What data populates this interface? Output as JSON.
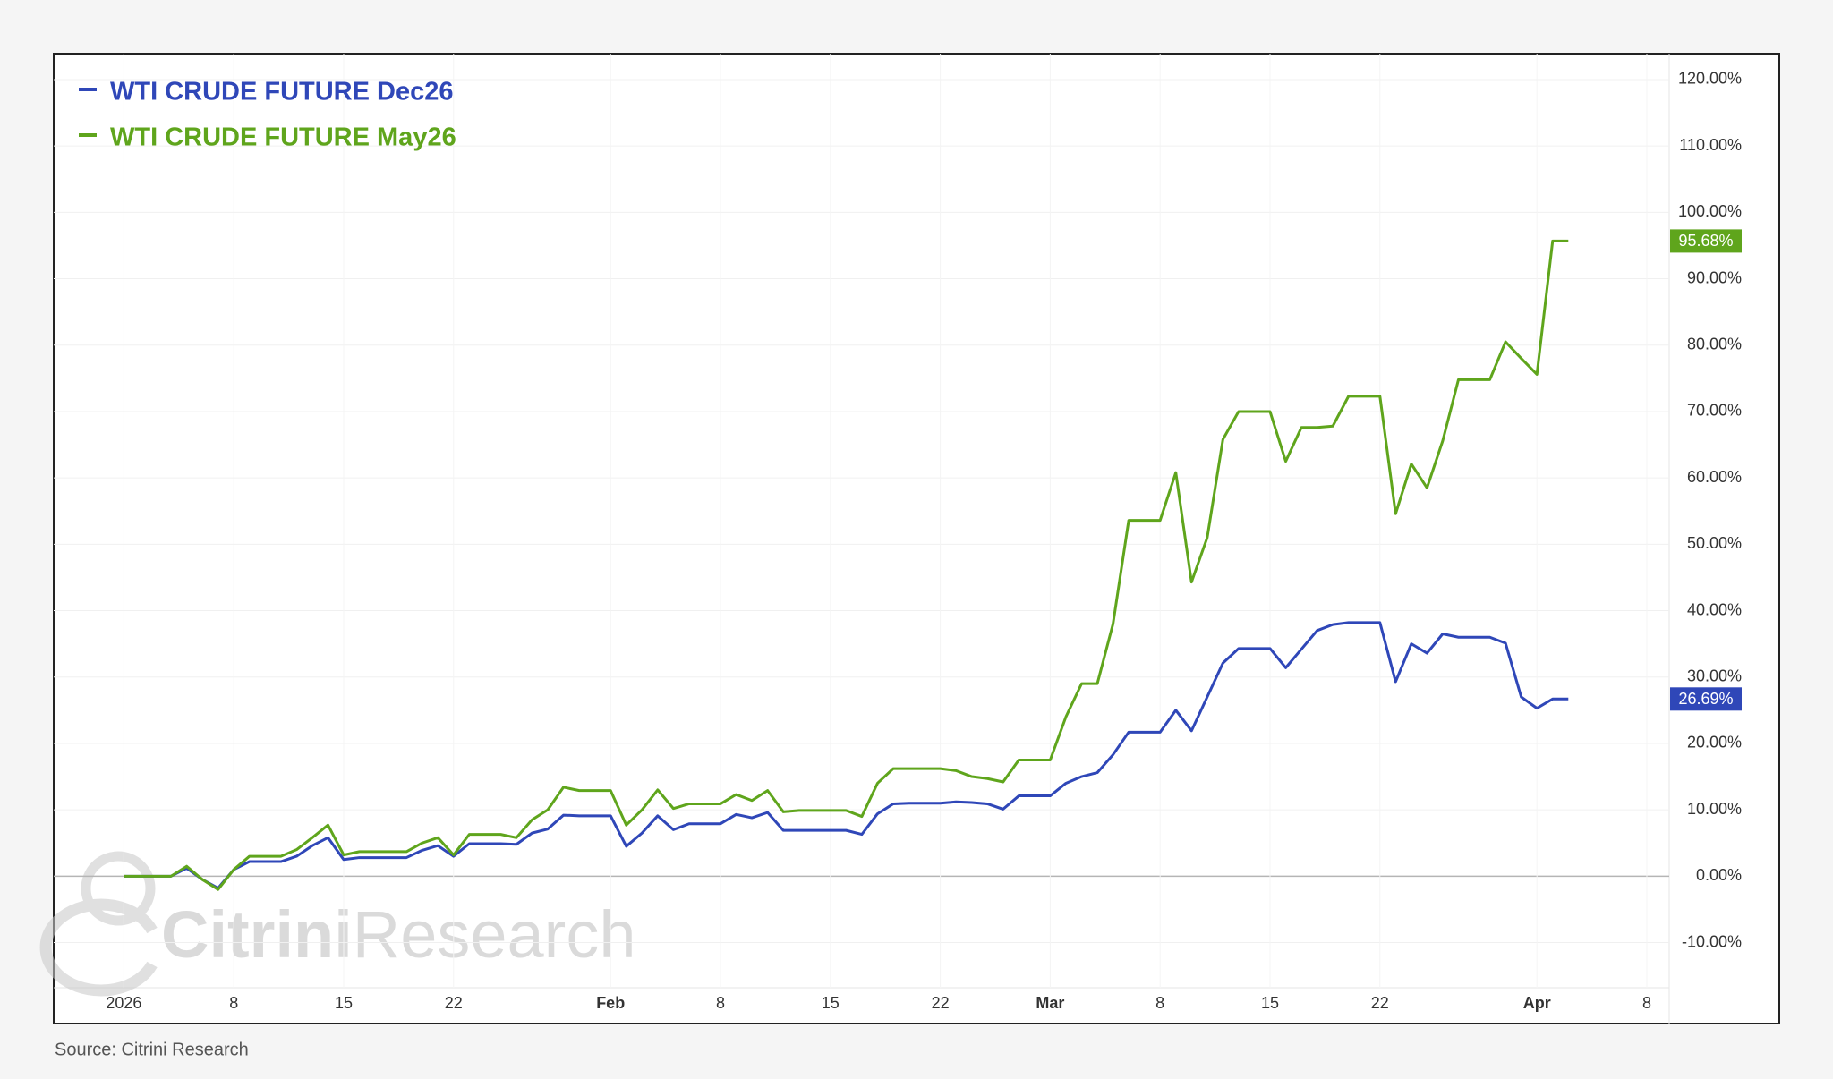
{
  "chart_data": {
    "type": "line",
    "source": "Source: Citrini Research",
    "watermark": {
      "bold": "Citrini",
      "regular": "Research"
    },
    "x": [
      "2026-01-01",
      "2026-01-02",
      "2026-01-03",
      "2026-01-04",
      "2026-01-05",
      "2026-01-06",
      "2026-01-07",
      "2026-01-08",
      "2026-01-09",
      "2026-01-10",
      "2026-01-11",
      "2026-01-12",
      "2026-01-13",
      "2026-01-14",
      "2026-01-15",
      "2026-01-16",
      "2026-01-17",
      "2026-01-18",
      "2026-01-19",
      "2026-01-20",
      "2026-01-21",
      "2026-01-22",
      "2026-01-23",
      "2026-01-24",
      "2026-01-25",
      "2026-01-26",
      "2026-01-27",
      "2026-01-28",
      "2026-01-29",
      "2026-01-30",
      "2026-01-31",
      "2026-02-01",
      "2026-02-02",
      "2026-02-03",
      "2026-02-04",
      "2026-02-05",
      "2026-02-06",
      "2026-02-07",
      "2026-02-08",
      "2026-02-09",
      "2026-02-10",
      "2026-02-11",
      "2026-02-12",
      "2026-02-13",
      "2026-02-14",
      "2026-02-15",
      "2026-02-16",
      "2026-02-17",
      "2026-02-18",
      "2026-02-19",
      "2026-02-20",
      "2026-02-21",
      "2026-02-22",
      "2026-02-23",
      "2026-02-24",
      "2026-02-25",
      "2026-02-26",
      "2026-02-27",
      "2026-02-28",
      "2026-03-01",
      "2026-03-02",
      "2026-03-03",
      "2026-03-04",
      "2026-03-05",
      "2026-03-06",
      "2026-03-07",
      "2026-03-08",
      "2026-03-09",
      "2026-03-10",
      "2026-03-11",
      "2026-03-12",
      "2026-03-13",
      "2026-03-14",
      "2026-03-15",
      "2026-03-16",
      "2026-03-17",
      "2026-03-18",
      "2026-03-19",
      "2026-03-20",
      "2026-03-21",
      "2026-03-22",
      "2026-03-23",
      "2026-03-24",
      "2026-03-25",
      "2026-03-26",
      "2026-03-27",
      "2026-03-28",
      "2026-03-29",
      "2026-03-30",
      "2026-03-31",
      "2026-04-01",
      "2026-04-02",
      "2026-04-03"
    ],
    "series": [
      {
        "name": "WTI CRUDE FUTURE Dec26",
        "color": "#2f47b8",
        "end_label": "26.69%",
        "values": [
          0,
          0,
          0,
          0,
          1.2,
          -0.5,
          -1.8,
          1,
          2.2,
          2.2,
          2.2,
          3,
          4.6,
          5.8,
          2.5,
          2.8,
          2.8,
          2.8,
          2.8,
          3.9,
          4.6,
          3,
          4.9,
          4.9,
          4.9,
          4.8,
          6.5,
          7.1,
          9.2,
          9.1,
          9.1,
          9.1,
          4.5,
          6.5,
          9.1,
          7,
          7.9,
          7.9,
          7.9,
          9.3,
          8.8,
          9.6,
          6.9,
          6.9,
          6.9,
          6.9,
          6.9,
          6.3,
          9.4,
          10.9,
          11,
          11,
          11,
          11.2,
          11.1,
          10.9,
          10.1,
          12.1,
          12.1,
          12.1,
          14,
          15,
          15.6,
          18.3,
          21.7,
          21.7,
          21.7,
          25,
          21.9,
          27,
          32.1,
          34.3,
          34.3,
          34.3,
          31.4,
          34.2,
          37,
          37.9,
          38.2,
          38.2,
          38.2,
          29.3,
          35,
          33.6,
          36.5,
          36,
          36,
          36,
          35.1,
          27,
          25.3,
          26.69,
          26.69
        ]
      },
      {
        "name": "WTI CRUDE FUTURE May26",
        "color": "#5fa51c",
        "end_label": "95.68%",
        "values": [
          0,
          0,
          0,
          0,
          1.5,
          -0.5,
          -2,
          1,
          3,
          3,
          3,
          4,
          5.8,
          7.7,
          3.2,
          3.7,
          3.7,
          3.7,
          3.7,
          5,
          5.8,
          3.2,
          6.3,
          6.3,
          6.3,
          5.8,
          8.5,
          10,
          13.4,
          12.9,
          12.9,
          12.9,
          7.7,
          10,
          13,
          10.2,
          10.9,
          10.9,
          10.9,
          12.3,
          11.4,
          12.9,
          9.7,
          9.9,
          9.9,
          9.9,
          9.9,
          9,
          14,
          16.2,
          16.2,
          16.2,
          16.2,
          15.9,
          15,
          14.7,
          14.2,
          17.5,
          17.5,
          17.5,
          24,
          29,
          29,
          38,
          53.6,
          53.6,
          53.6,
          60.8,
          44.3,
          51,
          65.8,
          70,
          70,
          70,
          62.5,
          67.6,
          67.6,
          67.8,
          72.3,
          72.3,
          72.3,
          54.6,
          62.1,
          58.5,
          65.6,
          74.8,
          74.8,
          74.8,
          80.5,
          78,
          75.6,
          95.68,
          95.68
        ]
      }
    ],
    "xlim": [
      "2026-01-01",
      "2026-04-08"
    ],
    "xticks": [
      {
        "value": "2026-01-01",
        "label": "2026"
      },
      {
        "value": "2026-01-08",
        "label": "8"
      },
      {
        "value": "2026-01-15",
        "label": "15"
      },
      {
        "value": "2026-01-22",
        "label": "22"
      },
      {
        "value": "2026-02-01",
        "label": "Feb"
      },
      {
        "value": "2026-02-08",
        "label": "8"
      },
      {
        "value": "2026-02-15",
        "label": "15"
      },
      {
        "value": "2026-02-22",
        "label": "22"
      },
      {
        "value": "2026-03-01",
        "label": "Mar"
      },
      {
        "value": "2026-03-08",
        "label": "8"
      },
      {
        "value": "2026-03-15",
        "label": "15"
      },
      {
        "value": "2026-03-22",
        "label": "22"
      },
      {
        "value": "2026-04-01",
        "label": "Apr"
      },
      {
        "value": "2026-04-08",
        "label": "8"
      }
    ],
    "ylim": [
      -16.8,
      123.9
    ],
    "yticks": [
      {
        "value": -10,
        "label": "-10.00%"
      },
      {
        "value": 0,
        "label": "0.00%"
      },
      {
        "value": 10,
        "label": "10.00%"
      },
      {
        "value": 20,
        "label": "20.00%"
      },
      {
        "value": 30,
        "label": "30.00%"
      },
      {
        "value": 40,
        "label": "40.00%"
      },
      {
        "value": 50,
        "label": "50.00%"
      },
      {
        "value": 60,
        "label": "60.00%"
      },
      {
        "value": 70,
        "label": "70.00%"
      },
      {
        "value": 80,
        "label": "80.00%"
      },
      {
        "value": 90,
        "label": "90.00%"
      },
      {
        "value": 100,
        "label": "100.00%"
      },
      {
        "value": 110,
        "label": "110.00%"
      },
      {
        "value": 120,
        "label": "120.00%"
      }
    ],
    "grid": true,
    "legend": "top-left"
  }
}
